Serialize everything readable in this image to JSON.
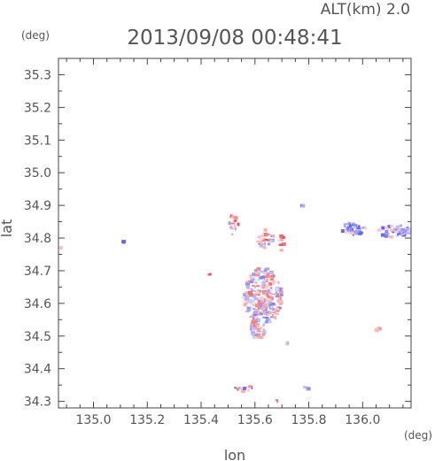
{
  "header": {
    "altitude_label": "ALT(km) 2.0",
    "timestamp": "2013/09/08 00:48:41"
  },
  "chart_data": {
    "type": "heatmap",
    "title": "2013/09/08 00:48:41",
    "xlabel": "lon",
    "ylabel": "lat",
    "x_unit": "(deg)",
    "y_unit": "(deg)",
    "xlim": [
      134.87,
      136.18
    ],
    "ylim": [
      34.28,
      35.35
    ],
    "x_ticks": [
      135.0,
      135.2,
      135.4,
      135.6,
      135.8,
      136.0
    ],
    "x_tick_labels": [
      "135.0",
      "135.2",
      "135.4",
      "135.6",
      "135.8",
      "136.0"
    ],
    "y_ticks": [
      34.3,
      34.4,
      34.5,
      34.6,
      34.7,
      34.8,
      34.9,
      35.0,
      35.1,
      35.2,
      35.3
    ],
    "y_tick_labels": [
      "34.3",
      "34.4",
      "34.5",
      "34.6",
      "34.7",
      "34.8",
      "34.9",
      "35.0",
      "35.1",
      "35.2",
      "35.3"
    ],
    "grid": false,
    "color_scale": {
      "negative": "#6666ee",
      "positive": "#ee5555"
    },
    "clusters": [
      {
        "lon": 135.63,
        "lat": 34.62,
        "rx": 0.07,
        "ry": 0.09,
        "count": 260,
        "sign": 0
      },
      {
        "lon": 135.61,
        "lat": 34.52,
        "rx": 0.03,
        "ry": 0.03,
        "count": 40,
        "sign": 0
      },
      {
        "lon": 135.52,
        "lat": 34.84,
        "rx": 0.02,
        "ry": 0.03,
        "count": 20,
        "sign": 0.3
      },
      {
        "lon": 135.64,
        "lat": 34.8,
        "rx": 0.03,
        "ry": 0.03,
        "count": 30,
        "sign": 0.2
      },
      {
        "lon": 135.7,
        "lat": 34.79,
        "rx": 0.01,
        "ry": 0.03,
        "count": 12,
        "sign": 0.4
      },
      {
        "lon": 135.97,
        "lat": 34.83,
        "rx": 0.05,
        "ry": 0.02,
        "count": 40,
        "sign": -0.5
      },
      {
        "lon": 136.12,
        "lat": 34.82,
        "rx": 0.06,
        "ry": 0.02,
        "count": 45,
        "sign": -0.5
      },
      {
        "lon": 135.55,
        "lat": 34.34,
        "rx": 0.04,
        "ry": 0.01,
        "count": 12,
        "sign": -0.2
      },
      {
        "lon": 135.79,
        "lat": 34.34,
        "rx": 0.01,
        "ry": 0.005,
        "count": 3,
        "sign": -0.5
      },
      {
        "lon": 134.88,
        "lat": 34.77,
        "rx": 0.005,
        "ry": 0.005,
        "count": 3,
        "sign": -0.6
      },
      {
        "lon": 135.11,
        "lat": 34.79,
        "rx": 0.01,
        "ry": 0.005,
        "count": 3,
        "sign": -0.4
      },
      {
        "lon": 135.43,
        "lat": 34.69,
        "rx": 0.005,
        "ry": 0.005,
        "count": 2,
        "sign": 0.9
      },
      {
        "lon": 136.06,
        "lat": 34.52,
        "rx": 0.01,
        "ry": 0.01,
        "count": 4,
        "sign": 0.6
      },
      {
        "lon": 135.72,
        "lat": 34.48,
        "rx": 0.005,
        "ry": 0.005,
        "count": 2,
        "sign": -0.6
      },
      {
        "lon": 135.68,
        "lat": 34.3,
        "rx": 0.005,
        "ry": 0.005,
        "count": 2,
        "sign": 0.9
      },
      {
        "lon": 135.78,
        "lat": 34.9,
        "rx": 0.005,
        "ry": 0.005,
        "count": 2,
        "sign": -0.7
      }
    ]
  }
}
